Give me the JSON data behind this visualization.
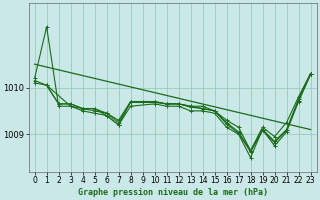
{
  "title": "Graphe pression niveau de la mer (hPa)",
  "background_color": "#cbe8e8",
  "line_color": "#1a6b1a",
  "grid_color": "#99ccbb",
  "ylim": [
    1008.2,
    1011.8
  ],
  "xlim": [
    -0.5,
    23.5
  ],
  "yticks": [
    1009,
    1010
  ],
  "xticks": [
    0,
    1,
    2,
    3,
    4,
    5,
    6,
    7,
    8,
    9,
    10,
    11,
    12,
    13,
    14,
    15,
    16,
    17,
    18,
    19,
    20,
    21,
    22,
    23
  ],
  "series": [
    {
      "x": [
        0,
        1,
        2,
        3,
        4,
        5,
        6,
        7,
        8,
        9,
        10,
        11,
        12,
        13,
        14,
        15,
        16,
        17,
        18,
        19,
        20,
        21,
        22,
        23
      ],
      "y": [
        1010.2,
        1011.3,
        1009.6,
        1009.6,
        1009.55,
        1009.55,
        1009.4,
        1009.2,
        1009.7,
        1009.7,
        1009.7,
        1009.65,
        1009.65,
        1009.6,
        1009.6,
        1009.5,
        1009.3,
        1009.15,
        1008.65,
        1009.15,
        1008.95,
        1009.25,
        1009.8,
        1010.3
      ]
    },
    {
      "x": [
        0,
        1,
        2,
        3,
        4,
        5,
        6,
        7,
        8,
        10,
        11,
        12,
        13,
        14,
        15,
        16,
        17,
        18,
        19,
        20,
        21,
        22,
        23
      ],
      "y": [
        1010.1,
        1010.05,
        1009.65,
        1009.65,
        1009.55,
        1009.55,
        1009.45,
        1009.3,
        1009.7,
        1009.7,
        1009.65,
        1009.65,
        1009.6,
        1009.55,
        1009.5,
        1009.25,
        1009.05,
        1008.65,
        1009.1,
        1008.85,
        1009.1,
        1009.75,
        1010.3
      ]
    },
    {
      "x": [
        0,
        1,
        2,
        3,
        4,
        5,
        6,
        7,
        8,
        10,
        11,
        12,
        13,
        14,
        15,
        16,
        17,
        18,
        19,
        20,
        21,
        22,
        23
      ],
      "y": [
        1010.15,
        1010.05,
        1009.65,
        1009.65,
        1009.55,
        1009.5,
        1009.45,
        1009.25,
        1009.68,
        1009.68,
        1009.65,
        1009.65,
        1009.58,
        1009.55,
        1009.5,
        1009.22,
        1009.02,
        1008.62,
        1009.08,
        1008.82,
        1009.08,
        1009.72,
        1010.28
      ]
    },
    {
      "x": [
        1,
        3,
        4,
        5,
        6,
        7,
        8,
        10,
        11,
        12,
        13,
        14,
        15,
        16,
        17,
        18,
        19,
        20,
        21,
        22,
        23
      ],
      "y": [
        1010.05,
        1009.6,
        1009.5,
        1009.45,
        1009.4,
        1009.2,
        1009.6,
        1009.65,
        1009.6,
        1009.6,
        1009.5,
        1009.5,
        1009.45,
        1009.15,
        1009.0,
        1008.5,
        1009.1,
        1008.75,
        1009.05,
        1009.7,
        1010.28
      ]
    }
  ],
  "trend_line": {
    "x": [
      0,
      23
    ],
    "y": [
      1010.5,
      1009.1
    ]
  },
  "tick_fontsize": 5.5,
  "label_fontsize": 6,
  "label_fontweight": "bold"
}
